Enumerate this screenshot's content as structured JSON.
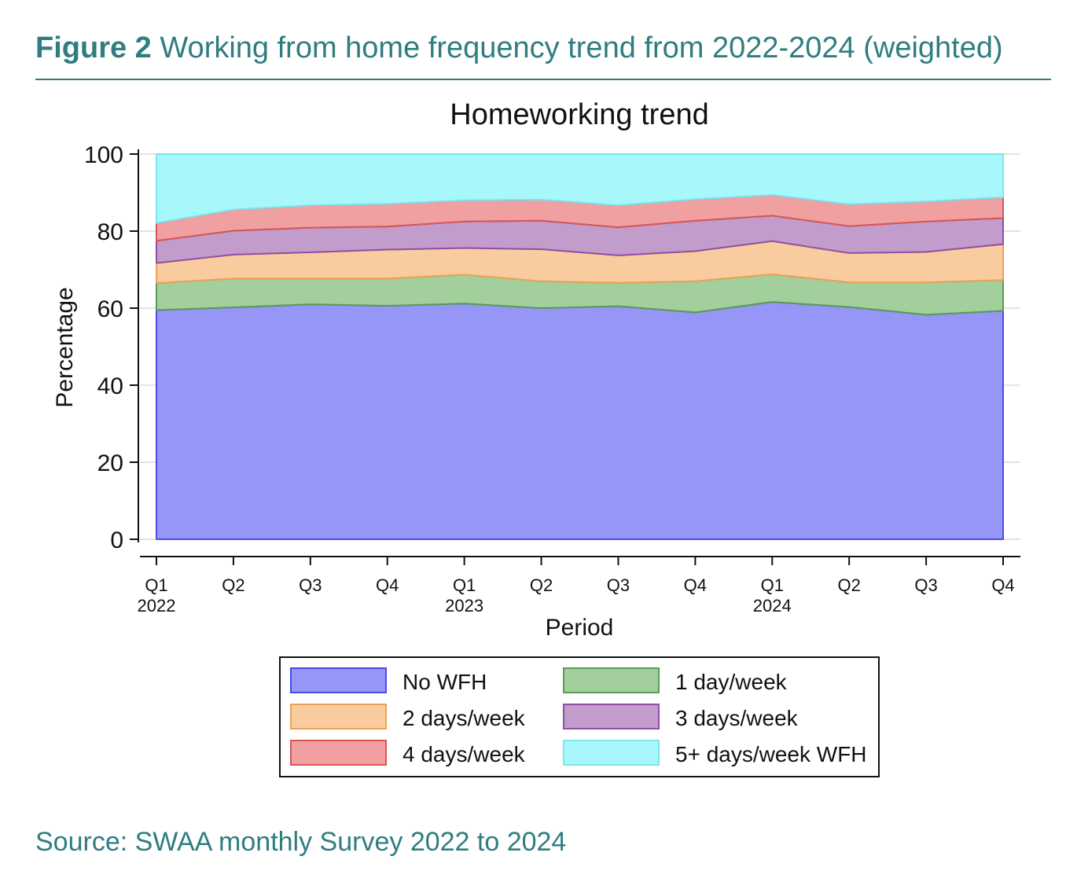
{
  "figure": {
    "label": "Figure 2",
    "caption": "Working from home frequency trend from 2022-2024 (weighted)"
  },
  "source": "Source: SWAA monthly Survey 2022 to 2024",
  "chart_data": {
    "type": "area",
    "title": "Homeworking trend",
    "xlabel": "Period",
    "ylabel": "Percentage",
    "ylim": [
      0,
      100
    ],
    "yticks": [
      0,
      20,
      40,
      60,
      80,
      100
    ],
    "grid": true,
    "legend_position": "bottom",
    "categories": [
      {
        "quarter": "Q1",
        "year": "2022"
      },
      {
        "quarter": "Q2",
        "year": ""
      },
      {
        "quarter": "Q3",
        "year": ""
      },
      {
        "quarter": "Q4",
        "year": ""
      },
      {
        "quarter": "Q1",
        "year": "2023"
      },
      {
        "quarter": "Q2",
        "year": ""
      },
      {
        "quarter": "Q3",
        "year": ""
      },
      {
        "quarter": "Q4",
        "year": ""
      },
      {
        "quarter": "Q1",
        "year": "2024"
      },
      {
        "quarter": "Q2",
        "year": ""
      },
      {
        "quarter": "Q3",
        "year": ""
      },
      {
        "quarter": "Q4",
        "year": ""
      }
    ],
    "stacked": true,
    "series": [
      {
        "name": "No WFH",
        "fill": "#9696f6",
        "stroke": "#4a4aee",
        "values": [
          59.5,
          60.2,
          61.0,
          60.6,
          61.2,
          60.0,
          60.5,
          58.9,
          61.6,
          60.3,
          58.3,
          59.3
        ]
      },
      {
        "name": "1 day/week",
        "fill": "#a2cf9c",
        "stroke": "#5c9a58",
        "values": [
          7.0,
          7.5,
          6.7,
          7.1,
          7.5,
          7.0,
          6.1,
          8.1,
          7.2,
          6.4,
          8.4,
          8.0
        ]
      },
      {
        "name": "2 days/week",
        "fill": "#f8cc9e",
        "stroke": "#eda05a",
        "values": [
          5.2,
          6.2,
          6.8,
          7.5,
          6.9,
          8.3,
          7.1,
          7.8,
          8.6,
          7.6,
          7.9,
          9.3
        ]
      },
      {
        "name": "3 days/week",
        "fill": "#c29ccb",
        "stroke": "#8f4fa6",
        "values": [
          5.8,
          6.2,
          6.4,
          6.0,
          6.9,
          7.4,
          7.3,
          7.9,
          6.6,
          7.0,
          7.9,
          6.8
        ]
      },
      {
        "name": "4 days/week",
        "fill": "#f0a0a0",
        "stroke": "#d95555",
        "values": [
          4.6,
          5.5,
          5.8,
          5.9,
          5.5,
          5.5,
          5.7,
          5.6,
          5.4,
          5.7,
          5.2,
          5.4
        ]
      },
      {
        "name": "5+ days/week WFH",
        "fill": "#a8f7fb",
        "stroke": "#7ae6ee",
        "values": [
          17.9,
          14.4,
          13.3,
          12.9,
          12.0,
          11.8,
          13.3,
          11.7,
          10.6,
          13.0,
          12.3,
          11.2
        ]
      }
    ]
  }
}
